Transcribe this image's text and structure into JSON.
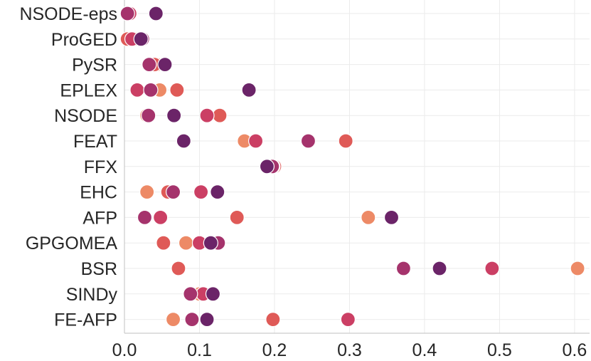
{
  "chart_data": {
    "type": "scatter",
    "title": "",
    "xlabel": "",
    "ylabel": "",
    "xlim": [
      0.0,
      0.62
    ],
    "xticks": [
      "0.0",
      "0.1",
      "0.2",
      "0.3",
      "0.4",
      "0.5",
      "0.6"
    ],
    "xtick_values": [
      0.0,
      0.1,
      0.2,
      0.3,
      0.4,
      0.5,
      0.6
    ],
    "grid": true,
    "legend": "none",
    "palette": [
      "#ed8a66",
      "#df5a57",
      "#cb3f64",
      "#a5336c",
      "#6b2468"
    ],
    "categories": [
      "NSODE-eps",
      "ProGED",
      "PySR",
      "EPLEX",
      "NSODE",
      "FEAT",
      "FFX",
      "EHC",
      "AFP",
      "GPGOMEA",
      "BSR",
      "SINDy",
      "FE-AFP"
    ],
    "series": [
      {
        "values": [
          0.008,
          0.013,
          0.043,
          0.047,
          0.03,
          0.16,
          0.2,
          0.03,
          0.325,
          0.082,
          0.604,
          0.1,
          0.065
        ]
      },
      {
        "values": [
          0.005,
          0.004,
          0.04,
          0.07,
          0.127,
          0.295,
          0.2,
          0.058,
          0.15,
          0.052,
          0.072,
          0.105,
          0.198
        ]
      },
      {
        "values": [
          0.007,
          0.01,
          0.032,
          0.017,
          0.11,
          0.175,
          0.198,
          0.102,
          0.048,
          0.1,
          0.49,
          0.105,
          0.298
        ]
      },
      {
        "values": [
          0.004,
          0.024,
          0.033,
          0.035,
          0.032,
          0.245,
          0.197,
          0.065,
          0.027,
          0.125,
          0.372,
          0.088,
          0.09
        ]
      },
      {
        "values": [
          0.042,
          0.022,
          0.054,
          0.166,
          0.066,
          0.079,
          0.19,
          0.124,
          0.356,
          0.115,
          0.42,
          0.118,
          0.11
        ]
      }
    ]
  }
}
